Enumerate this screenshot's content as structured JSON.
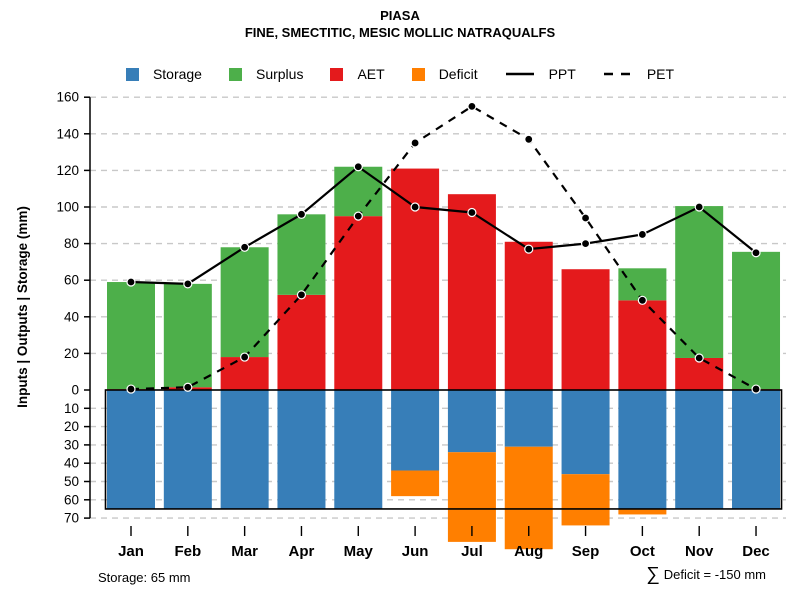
{
  "title": "PIASA",
  "subtitle": "FINE, SMECTITIC, MESIC MOLLIC NATRAQUALFS",
  "legend": {
    "items": [
      {
        "label": "Storage",
        "type": "square",
        "color": "#377EB8"
      },
      {
        "label": "Surplus",
        "type": "square",
        "color": "#4DAF4A"
      },
      {
        "label": "AET",
        "type": "square",
        "color": "#E41A1C"
      },
      {
        "label": "Deficit",
        "type": "square",
        "color": "#FF7F00"
      },
      {
        "label": "PPT",
        "type": "line-solid",
        "color": "#000000"
      },
      {
        "label": "PET",
        "type": "line-dashed",
        "color": "#000000"
      }
    ]
  },
  "chart_data": {
    "type": "bar",
    "title": "PIASA",
    "ylabel": "Inputs | Outputs | Storage  (mm)",
    "ylim": [
      -70,
      160
    ],
    "grid": true,
    "legend_position": "top",
    "categories": [
      "Jan",
      "Feb",
      "Mar",
      "Apr",
      "May",
      "Jun",
      "Jul",
      "Aug",
      "Sep",
      "Oct",
      "Nov",
      "Dec"
    ],
    "yticks_above": [
      0,
      20,
      40,
      60,
      80,
      100,
      120,
      140,
      160
    ],
    "yticks_below_abs": [
      10,
      20,
      30,
      40,
      50,
      60,
      70
    ],
    "storage_capacity_mm": 65,
    "series": [
      {
        "name": "AET",
        "type": "bar-up-stack1",
        "color": "#E41A1C",
        "values": [
          0.5,
          1.5,
          18,
          52,
          95,
          121,
          107,
          81,
          66,
          49,
          17.5,
          0.5
        ]
      },
      {
        "name": "Surplus",
        "type": "bar-up-stack2",
        "color": "#4DAF4A",
        "values": [
          58.5,
          56.5,
          60,
          44,
          27,
          0,
          0,
          0,
          0,
          17.5,
          83,
          75
        ]
      },
      {
        "name": "Storage",
        "type": "bar-down-stack1",
        "color": "#377EB8",
        "values": [
          65,
          65,
          65,
          65,
          65,
          44,
          34,
          31,
          46,
          65,
          65,
          65
        ]
      },
      {
        "name": "Deficit",
        "type": "bar-down-stack2",
        "color": "#FF7F00",
        "values": [
          0,
          0,
          0,
          0,
          0,
          14,
          49,
          56,
          28,
          3,
          0,
          0
        ]
      },
      {
        "name": "PPT",
        "type": "line-solid",
        "color": "#000000",
        "values": [
          59,
          58,
          78,
          96,
          122,
          100,
          97,
          77,
          80,
          85,
          100,
          75
        ]
      },
      {
        "name": "PET",
        "type": "line-dashed",
        "color": "#000000",
        "values": [
          0.5,
          1.5,
          18,
          52,
          95,
          135,
          155,
          137,
          94,
          49,
          17.5,
          0.5
        ]
      }
    ]
  },
  "footer": {
    "storage_note": "Storage: 65 mm",
    "deficit_sigma": "∑",
    "deficit_note": "Deficit = -150 mm"
  }
}
